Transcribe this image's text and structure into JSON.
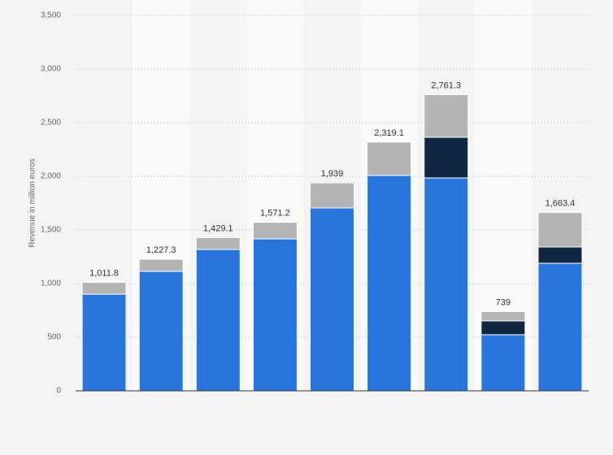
{
  "chart_data": {
    "type": "stacked-bar",
    "y_label": "Revenue in million euros",
    "categories": [
      null,
      null,
      null,
      null,
      null,
      null,
      null,
      null,
      null
    ],
    "series": [
      {
        "color": "#2876dd",
        "values": [
          901,
          1114,
          1318,
          1417,
          1705,
          2008,
          1985,
          523,
          1189
        ]
      },
      {
        "color": "#0f2640",
        "values": [
          0,
          0,
          0,
          0,
          0,
          0,
          379,
          129,
          152
        ]
      },
      {
        "color": "#b4b4b4",
        "values": [
          110.8,
          113.3,
          111.1,
          154.2,
          234,
          311.1,
          397.3,
          87,
          322.4
        ]
      }
    ],
    "totals": {
      "values": [
        1011.8,
        1227.3,
        1429.1,
        1571.2,
        1939,
        2319.1,
        2761.3,
        739,
        1663.4
      ],
      "value_labels": [
        "1,011.8",
        "1,227.3",
        "1,429.1",
        "1,571.2",
        "1,939",
        "2,319.1",
        "2,761.3",
        "739",
        "1,663.4"
      ]
    },
    "ylim": [
      0,
      3500
    ],
    "yticks": [
      0,
      500,
      {
        "value": 1000,
        "label": "1,000"
      },
      {
        "value": 1500,
        "label": "1,500"
      },
      {
        "value": 2000,
        "label": "2,000"
      },
      {
        "value": 2500,
        "label": "2,500"
      },
      {
        "value": 3000,
        "label": "3,000"
      },
      {
        "value": 3500,
        "label": "3,500"
      }
    ],
    "grid": true
  }
}
